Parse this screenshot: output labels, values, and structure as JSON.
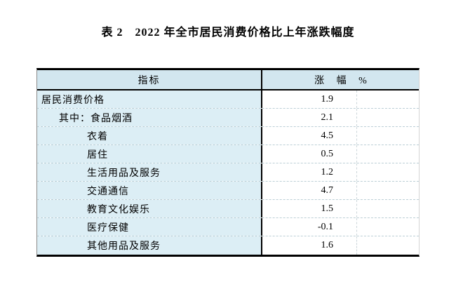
{
  "title": "表 2　2022 年全市居民消费价格比上年涨跌幅度",
  "table": {
    "header": {
      "indicator": "指标",
      "change": "涨 幅 %"
    },
    "rows": [
      {
        "label": "居民消费价格",
        "value": "1.9",
        "indent": 0
      },
      {
        "label": "其中：食品烟酒",
        "value": "2.1",
        "indent": 1
      },
      {
        "label": "衣着",
        "value": "4.5",
        "indent": 2
      },
      {
        "label": "居住",
        "value": "0.5",
        "indent": 2
      },
      {
        "label": "生活用品及服务",
        "value": "1.2",
        "indent": 2
      },
      {
        "label": "交通通信",
        "value": "4.7",
        "indent": 2
      },
      {
        "label": "教育文化娱乐",
        "value": "1.5",
        "indent": 2
      },
      {
        "label": "医疗保健",
        "value": "-0.1",
        "indent": 2
      },
      {
        "label": "其他用品及服务",
        "value": "1.6",
        "indent": 2
      }
    ]
  },
  "chart_data": {
    "type": "table",
    "title": "表 2　2022 年全市居民消费价格比上年涨跌幅度",
    "columns": [
      "指标",
      "涨 幅 %"
    ],
    "categories": [
      "居民消费价格",
      "其中：食品烟酒",
      "衣着",
      "居住",
      "生活用品及服务",
      "交通通信",
      "教育文化娱乐",
      "医疗保健",
      "其他用品及服务"
    ],
    "values": [
      1.9,
      2.1,
      4.5,
      0.5,
      1.2,
      4.7,
      1.5,
      -0.1,
      1.6
    ]
  },
  "colors": {
    "header_bg": "#d2e6ef",
    "label_cell_bg": "#dceef5",
    "value_cell_bg": "#ffffff",
    "rule_dark": "#000000",
    "row_separator": "#bccfd6"
  }
}
